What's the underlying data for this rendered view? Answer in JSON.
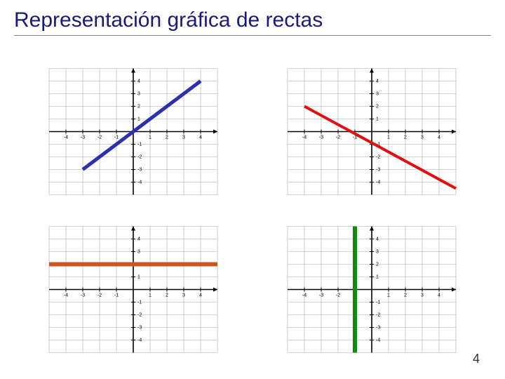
{
  "title": "Representación gráfica de rectas",
  "slide_number": "4",
  "colors": {
    "title": "#1a1a7a",
    "axis": "#000000",
    "grid": "#aaaaaa",
    "bg": "#ffffff",
    "tick_label": "#000000"
  },
  "axis": {
    "xmin": -5,
    "xmax": 5,
    "ymin": -5,
    "ymax": 5,
    "xticks": [
      -4,
      -3,
      -2,
      -1,
      1,
      2,
      3,
      4
    ],
    "yticks": [
      -4,
      -3,
      -2,
      -1,
      1,
      2,
      3,
      4
    ],
    "tick_fontsize": 7
  },
  "charts": [
    {
      "id": "top-left",
      "line": {
        "type": "oblique",
        "p1": [
          -3,
          -3
        ],
        "p2": [
          4,
          4
        ],
        "color": "#2b2fb0",
        "width": 5
      }
    },
    {
      "id": "top-right",
      "line": {
        "type": "oblique",
        "p1": [
          -4,
          2
        ],
        "p2": [
          5,
          -4.5
        ],
        "color": "#e01010",
        "width": 4
      }
    },
    {
      "id": "bottom-left",
      "line": {
        "type": "horizontal",
        "y": 2,
        "x1": -5,
        "x2": 5,
        "color": "#cc5520",
        "width": 6
      }
    },
    {
      "id": "bottom-right",
      "line": {
        "type": "vertical",
        "x": -1,
        "y1": -5,
        "y2": 5,
        "color": "#118a11",
        "width": 6
      }
    }
  ]
}
